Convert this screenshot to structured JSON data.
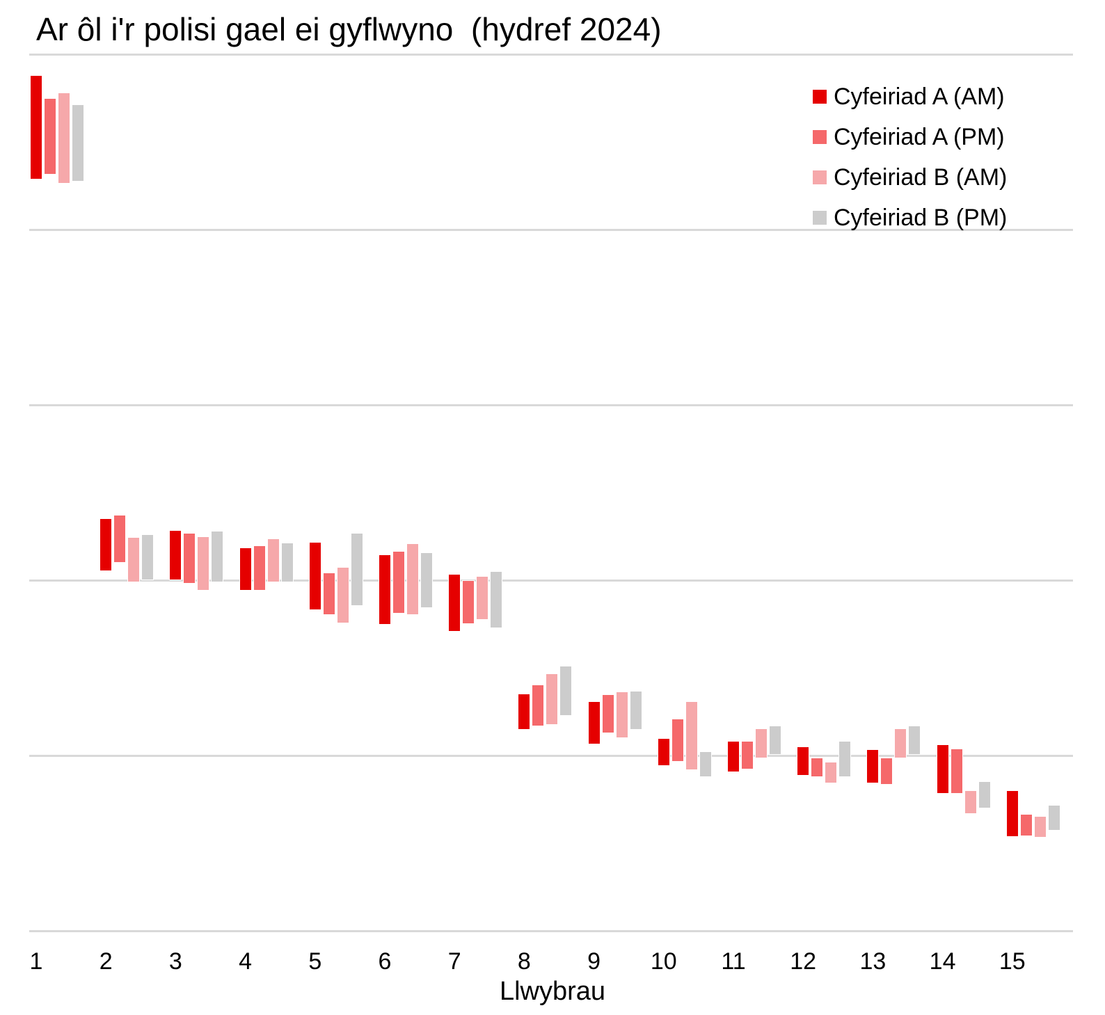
{
  "chart_data": {
    "type": "floating-bar",
    "title": "Ar ôl i'r polisi gael ei gyflwyno  (hydref 2024)",
    "xlabel": "Llwybrau",
    "ylabel": "",
    "ylim": [
      0,
      100
    ],
    "y_ticks_labeled": false,
    "grid": true,
    "grid_values": [
      0,
      20,
      40,
      60,
      80,
      100
    ],
    "legend_position": "top-right",
    "categories": [
      "1",
      "2",
      "3",
      "4",
      "5",
      "6",
      "7",
      "8",
      "9",
      "10",
      "11",
      "12",
      "13",
      "14",
      "15"
    ],
    "series": [
      {
        "name": "Cyfeiriad A (AM)",
        "color": "#e50000",
        "ranges": [
          [
            85.7,
            97.6
          ],
          [
            41.0,
            47.1
          ],
          [
            40.0,
            45.7
          ],
          [
            38.8,
            43.7
          ],
          [
            36.6,
            44.4
          ],
          [
            34.9,
            42.9
          ],
          [
            34.1,
            40.7
          ],
          [
            22.9,
            27.1
          ],
          [
            21.3,
            26.2
          ],
          [
            18.8,
            22.0
          ],
          [
            18.1,
            21.7
          ],
          [
            17.7,
            21.0
          ],
          [
            16.8,
            20.7
          ],
          [
            15.6,
            21.3
          ],
          [
            10.7,
            16.0
          ]
        ]
      },
      {
        "name": "Cyfeiriad A (PM)",
        "color": "#f5686a",
        "ranges": [
          [
            86.3,
            95.0
          ],
          [
            42.0,
            47.5
          ],
          [
            39.6,
            45.4
          ],
          [
            38.8,
            44.0
          ],
          [
            36.0,
            40.9
          ],
          [
            36.2,
            43.3
          ],
          [
            35.0,
            40.0
          ],
          [
            23.3,
            28.1
          ],
          [
            22.5,
            27.0
          ],
          [
            19.3,
            24.2
          ],
          [
            18.4,
            21.7
          ],
          [
            17.5,
            19.8
          ],
          [
            16.7,
            19.8
          ],
          [
            15.6,
            20.8
          ],
          [
            10.8,
            13.3
          ]
        ]
      },
      {
        "name": "Cyfeiriad B (AM)",
        "color": "#f6a8aa",
        "ranges": [
          [
            85.2,
            95.6
          ],
          [
            39.8,
            44.9
          ],
          [
            38.8,
            45.0
          ],
          [
            39.8,
            44.8
          ],
          [
            35.1,
            41.5
          ],
          [
            36.0,
            44.2
          ],
          [
            35.5,
            40.5
          ],
          [
            23.5,
            29.4
          ],
          [
            22.0,
            27.3
          ],
          [
            18.3,
            26.2
          ],
          [
            19.7,
            23.1
          ],
          [
            16.8,
            19.3
          ],
          [
            19.7,
            23.1
          ],
          [
            13.3,
            16.0
          ],
          [
            10.6,
            13.1
          ]
        ]
      },
      {
        "name": "Cyfeiriad B (PM)",
        "color": "#cccccc",
        "ranges": [
          [
            85.5,
            94.3
          ],
          [
            40.0,
            45.2
          ],
          [
            39.8,
            45.6
          ],
          [
            39.8,
            44.3
          ],
          [
            37.1,
            45.4
          ],
          [
            36.8,
            43.2
          ],
          [
            34.5,
            41.0
          ],
          [
            24.5,
            30.2
          ],
          [
            22.9,
            27.4
          ],
          [
            17.5,
            20.5
          ],
          [
            20.1,
            23.4
          ],
          [
            17.5,
            21.7
          ],
          [
            20.1,
            23.4
          ],
          [
            14.0,
            17.1
          ],
          [
            11.4,
            14.4
          ]
        ]
      }
    ]
  },
  "legend": {
    "items": [
      {
        "label": "Cyfeiriad A (AM)",
        "color": "#e50000"
      },
      {
        "label": "Cyfeiriad A (PM)",
        "color": "#f5686a"
      },
      {
        "label": "Cyfeiriad B (AM)",
        "color": "#f6a8aa"
      },
      {
        "label": "Cyfeiriad B (PM)",
        "color": "#cccccc"
      }
    ]
  }
}
